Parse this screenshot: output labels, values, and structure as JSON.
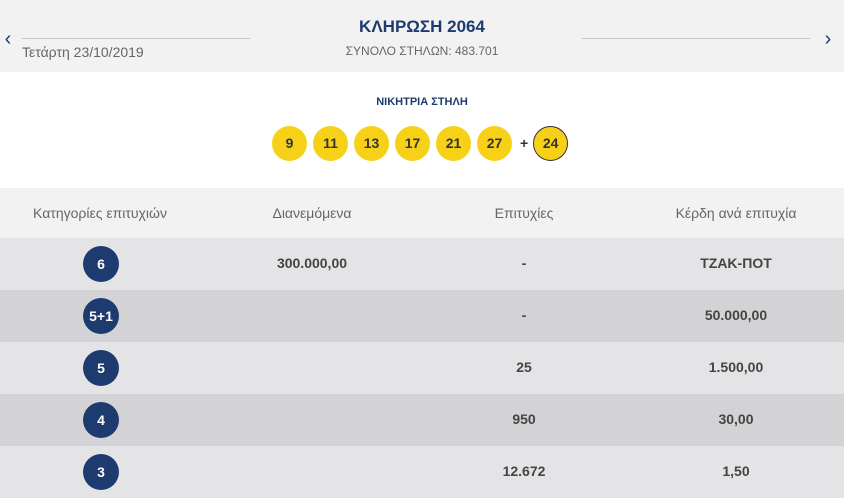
{
  "header": {
    "prev_icon": "chevron-left-icon",
    "prev_glyph": "‹",
    "next_icon": "chevron-right-icon",
    "next_glyph": "›",
    "title": "ΚΛΗΡΩΣΗ 2064",
    "date": "Τετάρτη 23/10/2019",
    "total_columns": "ΣΥΝΟΛΟ ΣΤΗΛΩΝ: 483.701"
  },
  "winning": {
    "label": "ΝΙΚΗΤΡΙΑ ΣΤΗΛΗ",
    "numbers": [
      "9",
      "11",
      "13",
      "17",
      "21",
      "27"
    ],
    "plus": "+",
    "bonus": "24"
  },
  "table": {
    "headers": [
      "Κατηγορίες επιτυχιών",
      "Διανεμόμενα",
      "Επιτυχίες",
      "Κέρδη ανά επιτυχία"
    ],
    "rows": [
      {
        "category": "6",
        "distributed": "300.000,00",
        "winners": "-",
        "prize": "ΤΖΑΚ-ΠΟΤ"
      },
      {
        "category": "5+1",
        "distributed": "",
        "winners": "-",
        "prize": "50.000,00"
      },
      {
        "category": "5",
        "distributed": "",
        "winners": "25",
        "prize": "1.500,00"
      },
      {
        "category": "4",
        "distributed": "",
        "winners": "950",
        "prize": "30,00"
      },
      {
        "category": "3",
        "distributed": "",
        "winners": "12.672",
        "prize": "1,50"
      }
    ]
  },
  "colors": {
    "brand_navy": "#1d3b6e",
    "ball_yellow": "#f7d117",
    "row_light": "#e4e4e6",
    "row_dark": "#d3d3d6"
  }
}
